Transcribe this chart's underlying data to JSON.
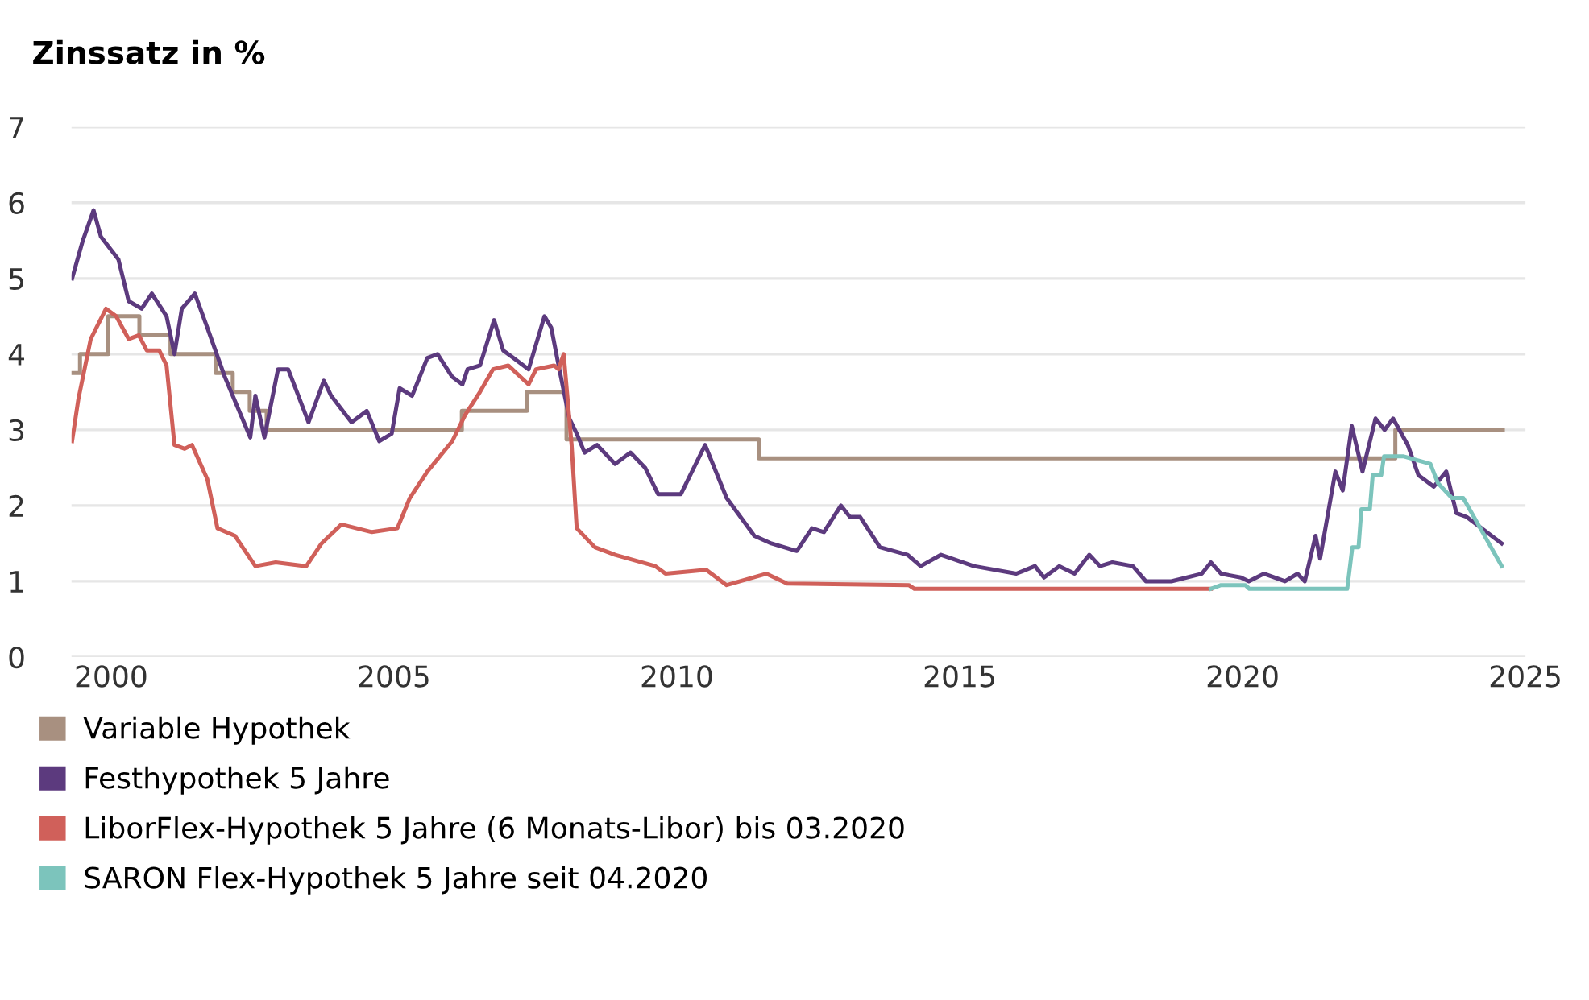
{
  "chart_data": {
    "type": "line",
    "ylabel": "Zinssatz in %",
    "xlim": [
      1999.3,
      2025.0
    ],
    "xticks": [
      2000,
      2005,
      2010,
      2015,
      2020,
      2025
    ],
    "ylim": [
      0,
      7
    ],
    "yticks": [
      0,
      1,
      2,
      3,
      4,
      5,
      6,
      7
    ],
    "grid": "y",
    "legend": "bottom",
    "marker": "none",
    "line_style": "solid",
    "series": [
      {
        "name": "Variable Hypothek",
        "color": "#a89080",
        "type": "step",
        "x": [
          1999.3,
          1999.45,
          1999.95,
          2000.5,
          2001.05,
          2001.85,
          2002.15,
          2002.45,
          2002.75,
          2006.2,
          2007.35,
          2008.05,
          2011.45,
          2022.7,
          2024.6
        ],
        "values": [
          3.75,
          4.0,
          4.5,
          4.25,
          4.0,
          3.75,
          3.5,
          3.25,
          3.0,
          3.25,
          3.5,
          2.875,
          2.625,
          3.0,
          3.0
        ]
      },
      {
        "name": "Festhypothek 5 Jahre",
        "color": "#5c3a7e",
        "x": [
          1999.31,
          1999.5,
          1999.69,
          1999.82,
          2000.13,
          2000.31,
          2000.54,
          2000.72,
          2000.98,
          2001.12,
          2001.25,
          2001.48,
          2001.7,
          2002.01,
          2002.46,
          2002.55,
          2002.71,
          2002.95,
          2003.13,
          2003.49,
          2003.76,
          2003.89,
          2004.25,
          2004.52,
          2004.74,
          2004.96,
          2005.1,
          2005.32,
          2005.59,
          2005.77,
          2006.03,
          2006.21,
          2006.3,
          2006.52,
          2006.77,
          2006.93,
          2007.11,
          2007.38,
          2007.66,
          2007.78,
          2007.91,
          2008.1,
          2008.23,
          2008.37,
          2008.59,
          2008.91,
          2009.18,
          2009.44,
          2009.67,
          2010.07,
          2010.5,
          2010.88,
          2011.37,
          2011.67,
          2012.12,
          2012.39,
          2012.6,
          2012.9,
          2013.06,
          2013.24,
          2013.59,
          2014.08,
          2014.31,
          2014.67,
          2015.25,
          2016.0,
          2016.33,
          2016.49,
          2016.76,
          2017.03,
          2017.29,
          2017.48,
          2017.7,
          2018.06,
          2018.29,
          2018.74,
          2019.28,
          2019.44,
          2019.62,
          2019.97,
          2020.11,
          2020.38,
          2020.75,
          2020.97,
          2021.1,
          2021.29,
          2021.37,
          2021.64,
          2021.77,
          2021.93,
          2022.12,
          2022.35,
          2022.51,
          2022.66,
          2022.92,
          2023.11,
          2023.38,
          2023.6,
          2023.78,
          2023.96,
          2024.58
        ],
        "values": [
          5.0,
          5.5,
          5.9,
          5.55,
          5.25,
          4.7,
          4.6,
          4.8,
          4.5,
          4.0,
          4.6,
          4.8,
          4.35,
          3.7,
          2.9,
          3.45,
          2.9,
          3.8,
          3.8,
          3.1,
          3.65,
          3.45,
          3.1,
          3.25,
          2.85,
          2.95,
          3.55,
          3.45,
          3.95,
          4.0,
          3.7,
          3.6,
          3.8,
          3.85,
          4.45,
          4.05,
          3.95,
          3.8,
          4.5,
          4.35,
          3.85,
          3.15,
          2.95,
          2.7,
          2.8,
          2.55,
          2.7,
          2.5,
          2.15,
          2.15,
          2.8,
          2.1,
          1.6,
          1.5,
          1.4,
          1.7,
          1.65,
          2.0,
          1.85,
          1.85,
          1.45,
          1.35,
          1.2,
          1.35,
          1.2,
          1.1,
          1.2,
          1.05,
          1.2,
          1.1,
          1.35,
          1.2,
          1.25,
          1.2,
          1.0,
          1.0,
          1.1,
          1.25,
          1.1,
          1.05,
          1.0,
          1.1,
          1.0,
          1.1,
          1.0,
          1.6,
          1.3,
          2.45,
          2.2,
          3.05,
          2.45,
          3.15,
          3.0,
          3.15,
          2.8,
          2.4,
          2.25,
          2.45,
          1.9,
          1.85,
          1.5
        ]
      },
      {
        "name": "LiborFlex-Hypothek 5 Jahre (6 Monats-Libor) bis 03.2020",
        "color": "#d0605a",
        "x": [
          1999.31,
          1999.42,
          1999.64,
          1999.91,
          2000.09,
          2000.31,
          2000.49,
          2000.63,
          2000.85,
          2000.98,
          2001.12,
          2001.3,
          2001.43,
          2001.7,
          2001.88,
          2002.19,
          2002.55,
          2002.91,
          2003.45,
          2003.72,
          2004.07,
          2004.61,
          2005.06,
          2005.28,
          2005.59,
          2006.03,
          2006.26,
          2006.52,
          2006.75,
          2007.02,
          2007.38,
          2007.51,
          2007.83,
          2007.91,
          2008.0,
          2008.14,
          2008.23,
          2008.55,
          2008.91,
          2009.62,
          2009.8,
          2010.52,
          2010.88,
          2011.58,
          2011.95,
          2014.1,
          2014.2,
          2019.44
        ],
        "values": [
          2.85,
          3.4,
          4.2,
          4.6,
          4.5,
          4.2,
          4.25,
          4.05,
          4.05,
          3.85,
          2.8,
          2.75,
          2.8,
          2.35,
          1.7,
          1.6,
          1.2,
          1.25,
          1.2,
          1.5,
          1.75,
          1.65,
          1.7,
          2.1,
          2.45,
          2.85,
          3.2,
          3.5,
          3.8,
          3.85,
          3.6,
          3.8,
          3.85,
          3.8,
          4.0,
          2.8,
          1.7,
          1.45,
          1.35,
          1.2,
          1.1,
          1.15,
          0.95,
          1.1,
          0.97,
          0.95,
          0.9,
          0.9
        ]
      },
      {
        "name": "SARON Flex-Hypothek 5 Jahre seit 04.2020",
        "color": "#7cc4bc",
        "x": [
          2019.44,
          2019.62,
          2020.05,
          2020.12,
          2021.85,
          2021.94,
          2022.05,
          2022.1,
          2022.25,
          2022.3,
          2022.45,
          2022.5,
          2022.85,
          2023.32,
          2023.45,
          2023.7,
          2023.9,
          2024.58
        ],
        "values": [
          0.9,
          0.95,
          0.95,
          0.9,
          0.9,
          1.45,
          1.45,
          1.95,
          1.95,
          2.4,
          2.4,
          2.65,
          2.65,
          2.55,
          2.3,
          2.1,
          2.1,
          1.2
        ]
      }
    ]
  }
}
